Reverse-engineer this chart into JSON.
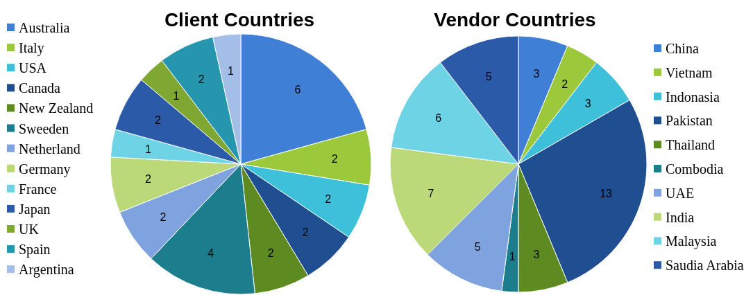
{
  "chart_data": [
    {
      "type": "pie",
      "title": "Client Countries",
      "legend": "left",
      "data_labels": true,
      "categories": [
        "Australia",
        "Italy",
        "USA",
        "Canada",
        "New Zealand",
        "Sweeden",
        "Netherland",
        "Germany",
        "France",
        "Japan",
        "UK",
        "Spain",
        "Argentina"
      ],
      "values": [
        6,
        2,
        2,
        2,
        2,
        4,
        2,
        2,
        1,
        2,
        1,
        2,
        1
      ],
      "colors": [
        "#3f7fd6",
        "#9cc83c",
        "#3ec0da",
        "#1f4f91",
        "#5e8a22",
        "#1c7d8c",
        "#7ea3df",
        "#bcd97a",
        "#6fd3e6",
        "#2a5aa8",
        "#7fa832",
        "#2596ad",
        "#a3bfe8"
      ]
    },
    {
      "type": "pie",
      "title": "Vendor Countries",
      "legend": "right",
      "data_labels": true,
      "categories": [
        "China",
        "Vietnam",
        "Indonasia",
        "Pakistan",
        "Thailand",
        "Combodia",
        "UAE",
        "India",
        "Malaysia",
        "Saudia Arabia"
      ],
      "values": [
        3,
        2,
        3,
        13,
        3,
        1,
        5,
        7,
        6,
        5
      ],
      "colors": [
        "#3f7fd6",
        "#9cc83c",
        "#3ec0da",
        "#1f4f91",
        "#5e8a22",
        "#1c7d8c",
        "#7ea3df",
        "#bcd97a",
        "#6fd3e6",
        "#2a5aa8"
      ]
    }
  ]
}
